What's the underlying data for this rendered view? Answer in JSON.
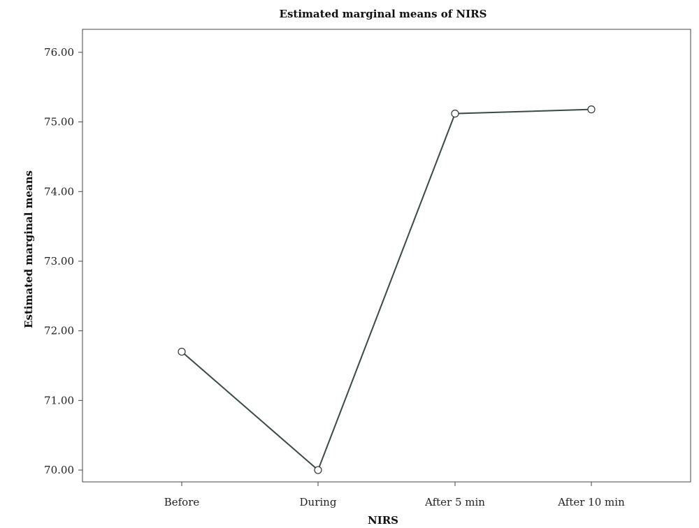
{
  "chart_data": {
    "type": "line",
    "title": "Estimated marginal means of NIRS",
    "xlabel": "NIRS",
    "ylabel": "Estimated marginal means",
    "categories": [
      "Before",
      "During",
      "After 5 min",
      "After 10 min"
    ],
    "series": [
      {
        "values": [
          71.7,
          70.0,
          75.12,
          75.18
        ]
      }
    ],
    "yticks": [
      "70.00",
      "71.00",
      "72.00",
      "73.00",
      "74.00",
      "75.00",
      "76.00"
    ],
    "ylim": [
      69.83,
      76.33
    ],
    "grid": false,
    "legend": "none",
    "markers": "open-circle",
    "line_color": "#3a4a4a"
  }
}
